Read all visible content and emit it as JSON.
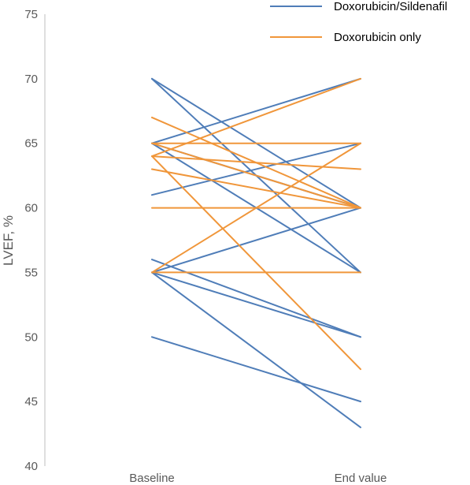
{
  "chart_data": {
    "type": "line",
    "title": "",
    "xlabel": "",
    "ylabel": "LVEF, %",
    "categories": [
      "Baseline",
      "End value"
    ],
    "ylim": [
      40,
      75
    ],
    "yticks": [
      "40",
      "45",
      "50",
      "55",
      "60",
      "65",
      "70",
      "75"
    ],
    "grid": false,
    "legend_position": "top-right",
    "series": [
      {
        "name": "Doxorubicin/Sildenafil",
        "color": "#4F7DB8",
        "lines": [
          [
            70,
            60
          ],
          [
            70,
            55
          ],
          [
            65,
            70
          ],
          [
            65,
            60
          ],
          [
            65,
            55
          ],
          [
            61,
            65
          ],
          [
            56,
            50
          ],
          [
            55,
            60
          ],
          [
            55,
            50
          ],
          [
            55,
            43
          ],
          [
            50,
            45
          ]
        ]
      },
      {
        "name": "Doxorubicin only",
        "color": "#F0963A",
        "lines": [
          [
            67,
            60
          ],
          [
            65,
            65
          ],
          [
            65,
            60
          ],
          [
            64,
            70
          ],
          [
            64,
            47.5
          ],
          [
            64,
            63
          ],
          [
            63,
            60
          ],
          [
            60,
            60
          ],
          [
            55,
            65
          ],
          [
            55,
            55
          ]
        ]
      }
    ]
  }
}
